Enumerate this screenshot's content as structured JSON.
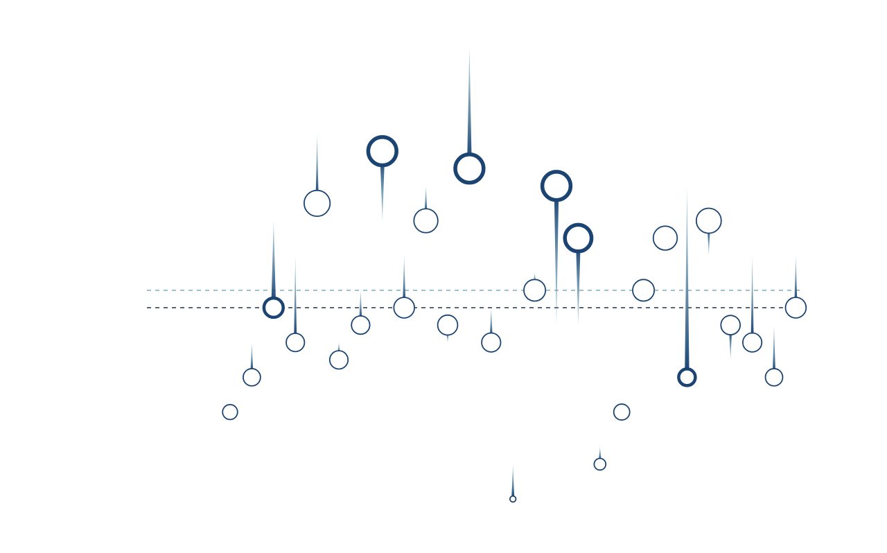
{
  "chart_data": {
    "type": "scatter",
    "title": "",
    "xlabel": "",
    "ylabel": "",
    "x_range": [
      1,
      27
    ],
    "y_range": [
      -10,
      15
    ],
    "grid": false,
    "legend": "none",
    "reference_lines": [
      {
        "y": 2,
        "color": "#6fa6b6",
        "style": "dashed"
      },
      {
        "y": 1,
        "color": "#1f3552",
        "style": "dashed"
      }
    ],
    "points": [
      {
        "x": 1,
        "y": -5,
        "size": 0.45,
        "weight": "thin",
        "stem": 0
      },
      {
        "x": 2,
        "y": -3,
        "size": 0.52,
        "weight": "thin",
        "stem": 2
      },
      {
        "x": 3,
        "y": 1,
        "size": 0.58,
        "weight": "thick",
        "stem": 5
      },
      {
        "x": 4,
        "y": -1,
        "size": 0.55,
        "weight": "thin",
        "stem": 5
      },
      {
        "x": 5,
        "y": 7,
        "size": 0.78,
        "weight": "thin",
        "stem": 4
      },
      {
        "x": 6,
        "y": -2,
        "size": 0.55,
        "weight": "thin",
        "stem": 1
      },
      {
        "x": 7,
        "y": 0,
        "size": 0.55,
        "weight": "thin",
        "stem": 2
      },
      {
        "x": 8,
        "y": 10,
        "size": 0.85,
        "weight": "thick",
        "stem": -4
      },
      {
        "x": 9,
        "y": 1,
        "size": 0.62,
        "weight": "thin",
        "stem": 3
      },
      {
        "x": 10,
        "y": 6,
        "size": 0.72,
        "weight": "thin",
        "stem": 2
      },
      {
        "x": 11,
        "y": 0,
        "size": 0.6,
        "weight": "thin",
        "stem": -1
      },
      {
        "x": 12,
        "y": 9,
        "size": 0.85,
        "weight": "thick",
        "stem": 7
      },
      {
        "x": 13,
        "y": -1,
        "size": 0.57,
        "weight": "thin",
        "stem": 2
      },
      {
        "x": 14,
        "y": -10,
        "size": 0.18,
        "weight": "thin",
        "stem": 2
      },
      {
        "x": 15,
        "y": 2,
        "size": 0.65,
        "weight": "thin",
        "stem": 1
      },
      {
        "x": 16,
        "y": 8,
        "size": 0.85,
        "weight": "thick",
        "stem": -8
      },
      {
        "x": 17,
        "y": 5,
        "size": 0.8,
        "weight": "thick",
        "stem": -5
      },
      {
        "x": 18,
        "y": -8,
        "size": 0.35,
        "weight": "thin",
        "stem": 1
      },
      {
        "x": 19,
        "y": -5,
        "size": 0.48,
        "weight": "thin",
        "stem": 0
      },
      {
        "x": 20,
        "y": 2,
        "size": 0.65,
        "weight": "thin",
        "stem": 0
      },
      {
        "x": 21,
        "y": 5,
        "size": 0.72,
        "weight": "thin",
        "stem": 0
      },
      {
        "x": 22,
        "y": -3,
        "size": 0.5,
        "weight": "thick",
        "stem": 11
      },
      {
        "x": 23,
        "y": 6,
        "size": 0.75,
        "weight": "thin",
        "stem": -2
      },
      {
        "x": 24,
        "y": 0,
        "size": 0.58,
        "weight": "thin",
        "stem": -2
      },
      {
        "x": 25,
        "y": -1,
        "size": 0.57,
        "weight": "thin",
        "stem": 5
      },
      {
        "x": 26,
        "y": -3,
        "size": 0.52,
        "weight": "thin",
        "stem": 3
      },
      {
        "x": 27,
        "y": 1,
        "size": 0.62,
        "weight": "thin",
        "stem": 3
      }
    ],
    "colors": {
      "marker": "#1b4472",
      "stem_dark": "#1b4472",
      "stem_light": "#7fb4c8",
      "ref_line_light": "#6fa6b6",
      "ref_line_dark": "#1f3552"
    }
  }
}
